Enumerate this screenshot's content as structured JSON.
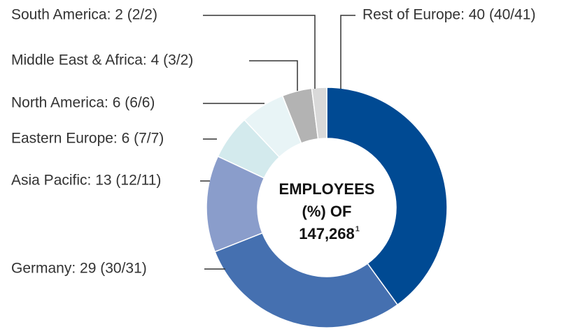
{
  "chart_data": {
    "type": "donut",
    "categories": [
      "Rest of Europe: 40 (40/41)",
      "Germany: 29 (30/31)",
      "Asia Pacific: 13 (12/11)",
      "Eastern Europe: 6 (7/7)",
      "North America: 6 (6/6)",
      "Middle East & Africa: 4 (3/2)",
      "South America: 2 (2/2)"
    ],
    "values": [
      40,
      29,
      13,
      6,
      6,
      4,
      2
    ],
    "colors": [
      "#004a93",
      "#4570b0",
      "#8a9dcb",
      "#d3eaed",
      "#e8f4f6",
      "#b3b3b3",
      "#d9d9d9"
    ],
    "center_text": [
      "EMPLOYEES",
      "(%) OF",
      "147,268"
    ],
    "center_footnote": "1"
  }
}
